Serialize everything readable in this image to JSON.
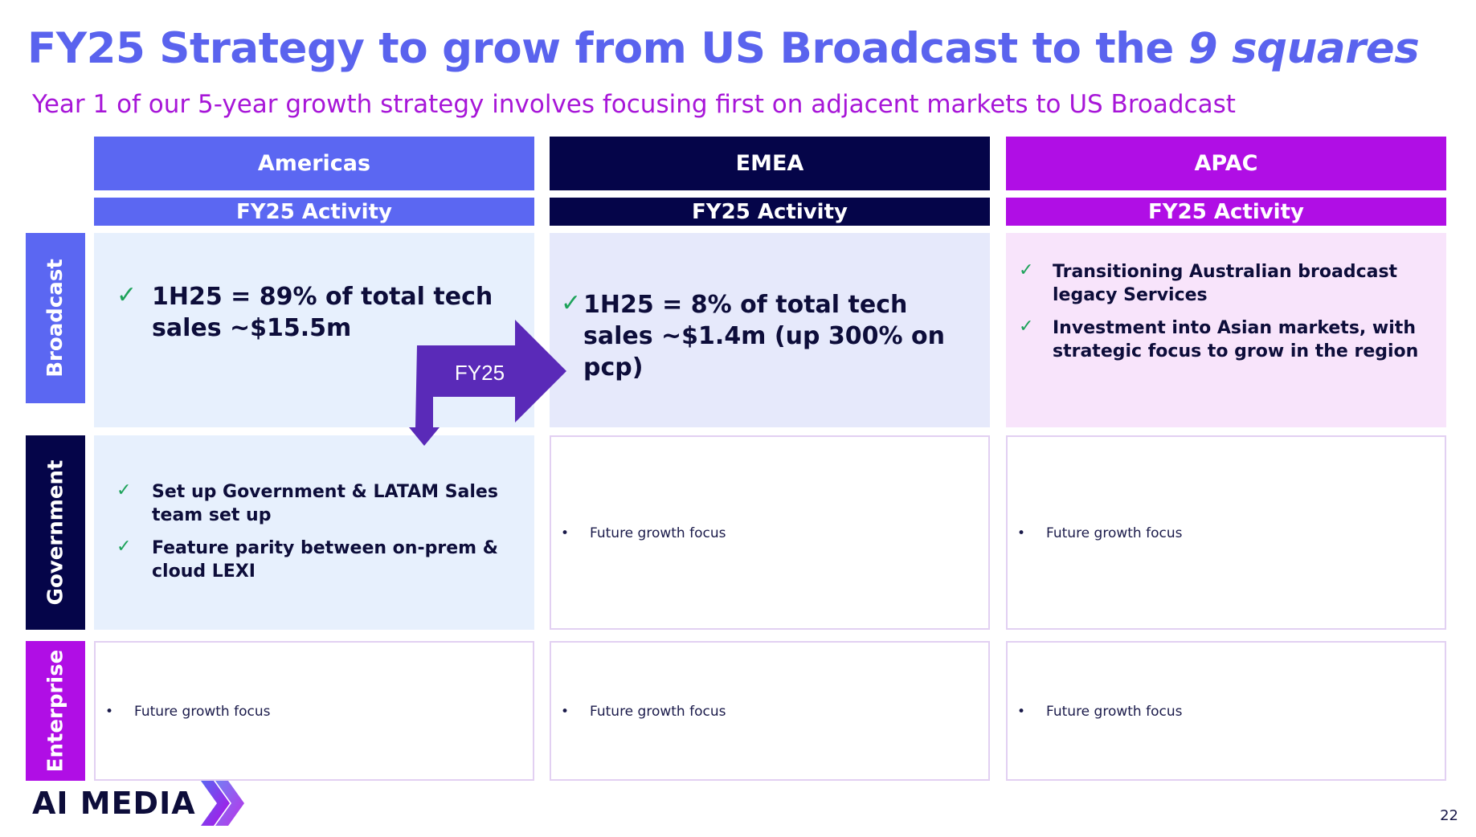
{
  "title": {
    "main": "FY25 Strategy to grow from US Broadcast to the",
    "number": "9",
    "italic": "squares"
  },
  "subtitle": "Year 1 of our 5-year growth strategy involves focusing first on adjacent markets to US Broadcast",
  "columns": [
    {
      "label": "Americas",
      "color": "#5b67f2"
    },
    {
      "label": "EMEA",
      "color": "#050549"
    },
    {
      "label": "APAC",
      "color": "#b00ee5"
    }
  ],
  "activity_label": "FY25 Activity",
  "rows": [
    {
      "label": "Broadcast",
      "color": "#5b67f2"
    },
    {
      "label": "Government",
      "color": "#050549"
    },
    {
      "label": "Enterprise",
      "color": "#b00ee5"
    }
  ],
  "cells": {
    "americas_broadcast": {
      "text": "1H25 = 89% of total tech sales ~$15.5m"
    },
    "emea_broadcast": {
      "text": "1H25 = 8% of total tech sales ~$1.4m (up 300% on pcp)"
    },
    "apac_broadcast": {
      "items": [
        "Transitioning Australian broadcast legacy Services",
        "Investment into Asian markets, with strategic focus to grow in the region"
      ]
    },
    "americas_government": {
      "items": [
        "Set up Government & LATAM Sales team set up",
        "Feature parity between on-prem & cloud LEXI"
      ]
    },
    "future_text": "Future growth focus",
    "bullet": "•"
  },
  "arrow_label": "FY25",
  "check_symbol": "✓",
  "logo_text": "AI MEDIA",
  "page_number": "22",
  "colors": {
    "cell_light_blue": "#e7f0fd",
    "cell_light_lavender": "#e6e9fb",
    "cell_light_pink": "#f8e4fb",
    "arrow": "#5a2ab8",
    "check": "#1da35a"
  }
}
